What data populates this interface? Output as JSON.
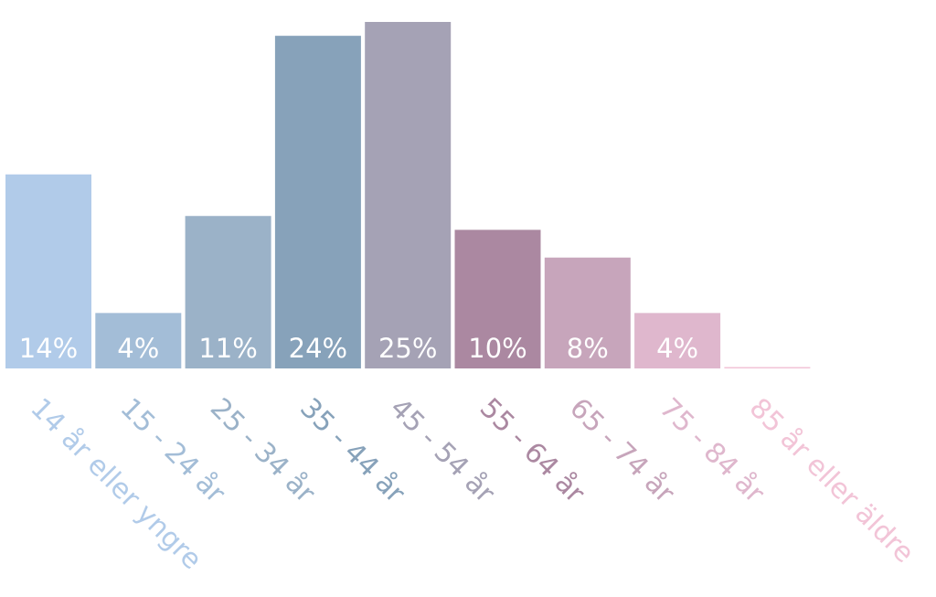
{
  "chart_data": {
    "type": "bar",
    "categories": [
      "14 år eller yngre",
      "15 - 24 år",
      "25 - 34 år",
      "35 - 44 år",
      "45 - 54 år",
      "55 - 64 år",
      "65 - 74 år",
      "75 - 84 år",
      "85 år eller äldre"
    ],
    "values": [
      14,
      4,
      11,
      24,
      25,
      10,
      8,
      4,
      0.1
    ],
    "value_labels": [
      "14%",
      "4%",
      "11%",
      "24%",
      "25%",
      "10%",
      "8%",
      "4%",
      null
    ],
    "colors": [
      "#b1cbe9",
      "#a3bdd7",
      "#9bb2c8",
      "#87a2ba",
      "#a5a2b5",
      "#ab88a1",
      "#c7a5bb",
      "#dfb7cd",
      "#f2c4d7"
    ]
  }
}
